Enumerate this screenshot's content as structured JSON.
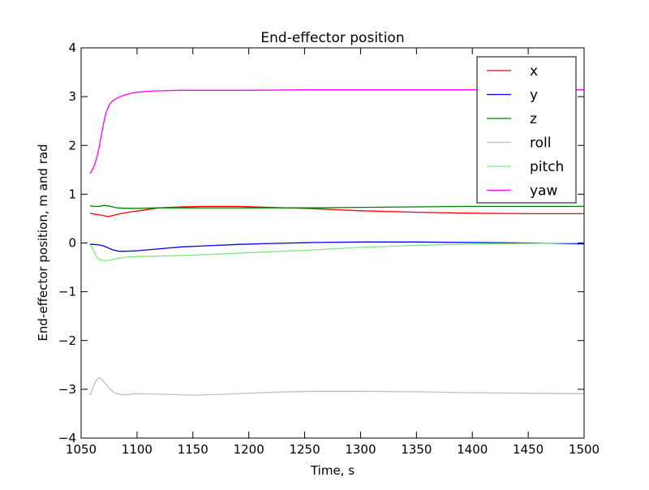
{
  "chart_data": {
    "type": "line",
    "title": "End-effector position",
    "xlabel": "Time, s",
    "ylabel": "End-effector position, m and rad",
    "xlim": [
      1050,
      1500
    ],
    "ylim": [
      -4,
      4
    ],
    "xticks": [
      "1050",
      "1100",
      "1150",
      "1200",
      "1250",
      "1300",
      "1350",
      "1400",
      "1450",
      "1500"
    ],
    "yticks": [
      "−4",
      "−3",
      "−2",
      "−1",
      "0",
      "1",
      "2",
      "3",
      "4"
    ],
    "grid": false,
    "legend_position": "top-right",
    "series": [
      {
        "name": "x",
        "color": "#ff0000",
        "x": [
          1058,
          1062,
          1066,
          1070,
          1074,
          1078,
          1085,
          1095,
          1105,
          1120,
          1140,
          1160,
          1190,
          1220,
          1260,
          1300,
          1350,
          1400,
          1450,
          1500
        ],
        "y": [
          0.61,
          0.59,
          0.58,
          0.56,
          0.54,
          0.56,
          0.6,
          0.64,
          0.67,
          0.72,
          0.74,
          0.75,
          0.75,
          0.73,
          0.7,
          0.66,
          0.63,
          0.61,
          0.6,
          0.6
        ]
      },
      {
        "name": "y",
        "color": "#0000ff",
        "x": [
          1058,
          1062,
          1066,
          1070,
          1074,
          1078,
          1084,
          1090,
          1100,
          1110,
          1125,
          1140,
          1160,
          1190,
          1220,
          1260,
          1300,
          1350,
          1400,
          1450,
          1500
        ],
        "y": [
          -0.03,
          -0.03,
          -0.04,
          -0.06,
          -0.1,
          -0.14,
          -0.17,
          -0.17,
          -0.16,
          -0.14,
          -0.11,
          -0.08,
          -0.06,
          -0.03,
          -0.01,
          0.01,
          0.02,
          0.02,
          0.01,
          0.0,
          -0.02
        ]
      },
      {
        "name": "z",
        "color": "#008000",
        "x": [
          1058,
          1062,
          1066,
          1070,
          1074,
          1078,
          1082,
          1090,
          1100,
          1120,
          1150,
          1180,
          1220,
          1260,
          1300,
          1350,
          1400,
          1450,
          1500
        ],
        "y": [
          0.76,
          0.75,
          0.75,
          0.77,
          0.76,
          0.74,
          0.72,
          0.71,
          0.71,
          0.72,
          0.72,
          0.72,
          0.72,
          0.72,
          0.73,
          0.74,
          0.75,
          0.75,
          0.75
        ]
      },
      {
        "name": "roll",
        "color": "#bfbfbf",
        "x": [
          1058,
          1060,
          1062,
          1064,
          1066,
          1068,
          1070,
          1073,
          1076,
          1080,
          1085,
          1090,
          1100,
          1120,
          1150,
          1180,
          1220,
          1260,
          1300,
          1350,
          1400,
          1450,
          1500
        ],
        "y": [
          -3.12,
          -3.0,
          -2.88,
          -2.8,
          -2.76,
          -2.78,
          -2.84,
          -2.92,
          -3.0,
          -3.07,
          -3.11,
          -3.11,
          -3.09,
          -3.1,
          -3.12,
          -3.1,
          -3.06,
          -3.04,
          -3.04,
          -3.05,
          -3.07,
          -3.08,
          -3.09
        ]
      },
      {
        "name": "pitch",
        "color": "#80e680",
        "x": [
          1058,
          1060,
          1062,
          1064,
          1066,
          1068,
          1070,
          1074,
          1080,
          1090,
          1100,
          1120,
          1150,
          1180,
          1220,
          1260,
          1300,
          1350,
          1400,
          1450,
          1500
        ],
        "y": [
          -0.05,
          -0.1,
          -0.2,
          -0.3,
          -0.34,
          -0.35,
          -0.36,
          -0.36,
          -0.33,
          -0.29,
          -0.28,
          -0.27,
          -0.25,
          -0.22,
          -0.18,
          -0.14,
          -0.09,
          -0.05,
          -0.02,
          -0.01,
          0.0
        ]
      },
      {
        "name": "yaw",
        "color": "#ff00ff",
        "x": [
          1058,
          1060,
          1062,
          1064,
          1066,
          1068,
          1070,
          1072,
          1074,
          1076,
          1078,
          1082,
          1086,
          1090,
          1095,
          1100,
          1110,
          1120,
          1140,
          1160,
          1200,
          1250,
          1300,
          1350,
          1400,
          1450,
          1500
        ],
        "y": [
          1.42,
          1.5,
          1.6,
          1.75,
          1.95,
          2.2,
          2.45,
          2.65,
          2.78,
          2.86,
          2.91,
          2.97,
          3.01,
          3.04,
          3.07,
          3.09,
          3.11,
          3.12,
          3.13,
          3.13,
          3.13,
          3.14,
          3.14,
          3.14,
          3.14,
          3.14,
          3.14
        ]
      }
    ]
  }
}
